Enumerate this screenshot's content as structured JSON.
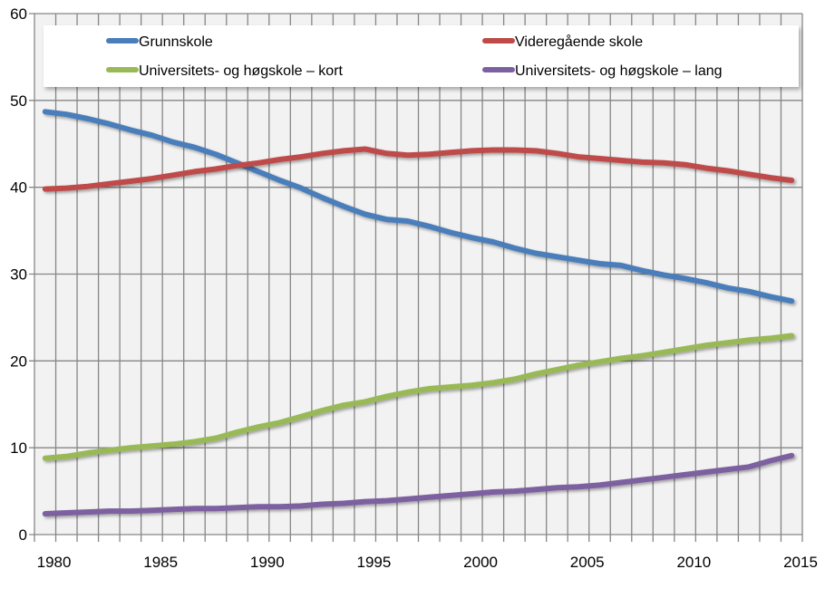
{
  "chart_data": {
    "type": "line",
    "title": "",
    "xlabel": "",
    "ylabel": "",
    "ylim": [
      0,
      60
    ],
    "yticks": [
      0,
      10,
      20,
      30,
      40,
      50,
      60
    ],
    "xlim": [
      1979,
      2015
    ],
    "xticks": [
      1980,
      1985,
      1990,
      1995,
      2000,
      2005,
      2010,
      2015
    ],
    "grid": true,
    "legend_position": "top",
    "plot_background": "#f2f2f2",
    "x": [
      1980,
      1981,
      1982,
      1983,
      1984,
      1985,
      1986,
      1987,
      1988,
      1989,
      1990,
      1991,
      1992,
      1993,
      1994,
      1995,
      1996,
      1997,
      1998,
      1999,
      2000,
      2001,
      2002,
      2003,
      2004,
      2005,
      2006,
      2007,
      2008,
      2009,
      2010,
      2011,
      2012,
      2013,
      2014,
      2015
    ],
    "series": [
      {
        "name": "Grunnskole",
        "color": "#4a7ebb",
        "values": [
          48.7,
          48.4,
          47.9,
          47.3,
          46.6,
          46.0,
          45.2,
          44.6,
          43.8,
          42.8,
          41.8,
          40.8,
          39.9,
          38.8,
          37.8,
          36.9,
          36.3,
          36.1,
          35.5,
          34.8,
          34.2,
          33.7,
          33.0,
          32.4,
          32.0,
          31.6,
          31.2,
          31.0,
          30.4,
          29.9,
          29.5,
          29.0,
          28.4,
          28.0,
          27.4,
          26.9
        ]
      },
      {
        "name": "Videregående skole",
        "color": "#be4b48",
        "values": [
          39.8,
          39.9,
          40.1,
          40.4,
          40.7,
          41.0,
          41.4,
          41.8,
          42.1,
          42.5,
          42.8,
          43.2,
          43.5,
          43.9,
          44.2,
          44.4,
          43.9,
          43.7,
          43.8,
          44.0,
          44.2,
          44.3,
          44.3,
          44.2,
          43.9,
          43.5,
          43.3,
          43.1,
          42.9,
          42.8,
          42.6,
          42.2,
          41.9,
          41.5,
          41.1,
          40.8
        ]
      },
      {
        "name": "Universitets- og høgskole – kort",
        "color": "#98b954",
        "values": [
          8.8,
          9.0,
          9.4,
          9.7,
          10.0,
          10.2,
          10.4,
          10.7,
          11.1,
          11.8,
          12.4,
          12.9,
          13.6,
          14.3,
          14.9,
          15.3,
          15.9,
          16.4,
          16.8,
          17.0,
          17.2,
          17.5,
          17.9,
          18.5,
          19.0,
          19.5,
          19.9,
          20.3,
          20.6,
          21.0,
          21.4,
          21.8,
          22.1,
          22.4,
          22.6,
          22.9
        ]
      },
      {
        "name": "Universitets- og høgskole – lang",
        "color": "#7d60a0",
        "values": [
          2.4,
          2.5,
          2.6,
          2.7,
          2.7,
          2.8,
          2.9,
          3.0,
          3.0,
          3.1,
          3.2,
          3.2,
          3.3,
          3.5,
          3.6,
          3.8,
          3.9,
          4.1,
          4.3,
          4.5,
          4.7,
          4.9,
          5.0,
          5.2,
          5.4,
          5.5,
          5.7,
          6.0,
          6.3,
          6.6,
          6.9,
          7.2,
          7.5,
          7.8,
          8.5,
          9.1
        ]
      }
    ]
  }
}
